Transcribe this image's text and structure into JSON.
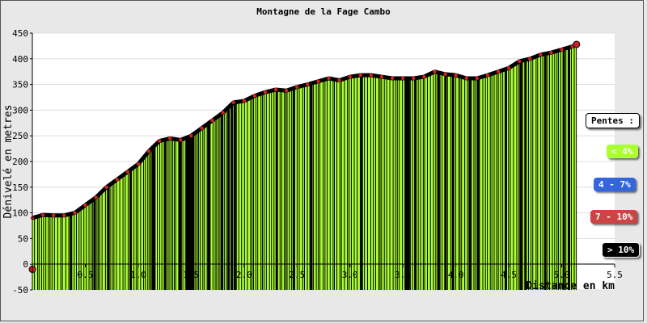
{
  "chart_data": {
    "type": "area",
    "title": "Montagne de la Fage Cambo",
    "xlabel": "Distance en km",
    "ylabel": "Dénivelé en metres",
    "xlim": [
      0,
      5.5
    ],
    "ylim": [
      -50,
      450
    ],
    "x_ticks": [
      "0.5",
      "1.0",
      "1.5",
      "2.0",
      "2.5",
      "3.0",
      "3.5",
      "4.0",
      "4.5",
      "5.0",
      "5.5"
    ],
    "y_ticks": [
      "-50",
      "0",
      "50",
      "100",
      "150",
      "200",
      "250",
      "300",
      "350",
      "400",
      "450"
    ],
    "grid": "horizontal",
    "fill_color": "#aaff33",
    "line_color": "#000000",
    "marker_color": "#cc2222",
    "start_marker_x": 0,
    "start_marker_y": -10,
    "x": [
      0.0,
      0.1,
      0.2,
      0.3,
      0.4,
      0.5,
      0.6,
      0.7,
      0.8,
      0.9,
      1.0,
      1.1,
      1.2,
      1.3,
      1.4,
      1.5,
      1.6,
      1.7,
      1.8,
      1.9,
      2.0,
      2.1,
      2.2,
      2.3,
      2.4,
      2.5,
      2.6,
      2.7,
      2.8,
      2.9,
      3.0,
      3.1,
      3.2,
      3.3,
      3.4,
      3.5,
      3.6,
      3.7,
      3.8,
      3.9,
      4.0,
      4.1,
      4.2,
      4.3,
      4.4,
      4.5,
      4.6,
      4.7,
      4.8,
      4.9,
      5.0,
      5.1,
      5.14
    ],
    "y": [
      90,
      96,
      95,
      95,
      100,
      115,
      130,
      150,
      165,
      180,
      195,
      220,
      240,
      245,
      242,
      250,
      265,
      280,
      295,
      315,
      318,
      328,
      335,
      340,
      338,
      345,
      350,
      356,
      362,
      358,
      365,
      368,
      368,
      365,
      362,
      362,
      362,
      365,
      375,
      370,
      368,
      362,
      362,
      368,
      375,
      382,
      395,
      400,
      408,
      412,
      418,
      424,
      428
    ]
  },
  "legend": {
    "title": "Pentes :",
    "items": [
      {
        "label": "< 4%",
        "color": "#aaff33"
      },
      {
        "label": "4 - 7%",
        "color": "#3366dd"
      },
      {
        "label": "7 - 10%",
        "color": "#cc4444"
      },
      {
        "label": "> 10%",
        "color": "#000000"
      }
    ]
  }
}
